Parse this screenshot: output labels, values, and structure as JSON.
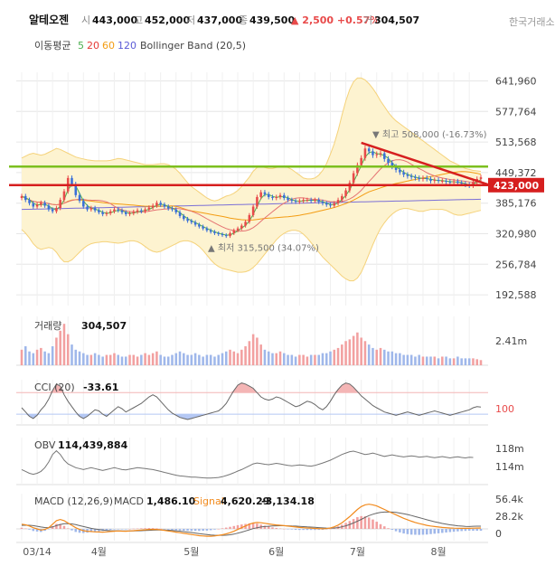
{
  "header": {
    "name": "알테오젠",
    "open_label": "시",
    "open": "443,000",
    "high_label": "고",
    "high": "452,000",
    "low_label": "저",
    "low": "437,000",
    "close_label": "종",
    "close": "439,500",
    "change": "▲ 2,500 +0.57%",
    "volume_label": "거",
    "volume": "304,507",
    "exchange": "한국거래소"
  },
  "indicators": {
    "ma_label": "이동평균",
    "ma_periods": [
      {
        "value": "5",
        "color": "#4caf50"
      },
      {
        "value": "20",
        "color": "#e53935"
      },
      {
        "value": "60",
        "color": "#f39c12"
      },
      {
        "value": "120",
        "color": "#5b5bd6"
      }
    ],
    "bollinger_label": "Bollinger Band (20,5)"
  },
  "colors": {
    "up": "#e84a4a",
    "down": "#3b6fd8",
    "band_fill": "#fdf3d0",
    "band_line": "#f5d27a",
    "support": "#d61f1f",
    "resistance": "#7cbf1f",
    "grid": "#e6e6e6"
  },
  "chart_data": [
    {
      "type": "candlestick",
      "panel": "price",
      "x_labels": [
        "03/14",
        "4월",
        "5월",
        "6월",
        "7월",
        "8월"
      ],
      "y_ticks": [
        "641,960",
        "577,764",
        "513,568",
        "449,372",
        "385,176",
        "320,980",
        "256,784",
        "192,588"
      ],
      "y_tick_values": [
        641960,
        577764,
        513568,
        449372,
        385176,
        320980,
        256784,
        192588
      ],
      "ylim": [
        170000,
        660000
      ],
      "current_price_label": "423,000",
      "current_price": 423000,
      "max_annotation": "▼ 최고 508,000 (-16.73%)",
      "max_value": 508000,
      "min_annotation": "▲ 최저 315,500 (34.07%)",
      "min_value": 315500,
      "ohlc_close": [
        400000,
        392000,
        385000,
        378000,
        382000,
        386000,
        380000,
        372000,
        368000,
        375000,
        392000,
        410000,
        438000,
        425000,
        402000,
        390000,
        378000,
        372000,
        375000,
        370000,
        366000,
        362000,
        364000,
        368000,
        372000,
        370000,
        366000,
        362000,
        364000,
        367000,
        370000,
        368000,
        372000,
        376000,
        380000,
        386000,
        382000,
        378000,
        374000,
        372000,
        366000,
        358000,
        352000,
        348000,
        345000,
        340000,
        336000,
        332000,
        328000,
        325000,
        322000,
        320000,
        318000,
        316000,
        322000,
        328000,
        332000,
        338000,
        346000,
        360000,
        378000,
        398000,
        408000,
        404000,
        398000,
        396000,
        398000,
        402000,
        396000,
        392000,
        390000,
        388000,
        390000,
        392000,
        392000,
        390000,
        392000,
        388000,
        385000,
        382000,
        380000,
        385000,
        392000,
        400000,
        412000,
        428000,
        448000,
        465000,
        480000,
        500000,
        494000,
        486000,
        488000,
        490000,
        478000,
        470000,
        462000,
        455000,
        450000,
        445000,
        442000,
        440000,
        438000,
        436000,
        438000,
        436000,
        432000,
        434000,
        432000,
        432000,
        430000,
        429000,
        431000,
        428000,
        426000,
        424000,
        422000,
        430000,
        436000,
        439500
      ],
      "band_upper": [
        480000,
        484000,
        488000,
        490000,
        488000,
        486000,
        488000,
        492000,
        496000,
        500000,
        498000,
        494000,
        490000,
        486000,
        482000,
        480000,
        478000,
        476000,
        475000,
        474000,
        474000,
        474000,
        474000,
        475000,
        477000,
        479000,
        478000,
        476000,
        474000,
        472000,
        470000,
        468000,
        466000,
        466000,
        466000,
        467000,
        468000,
        468000,
        466000,
        462000,
        456000,
        448000,
        438000,
        428000,
        420000,
        414000,
        408000,
        402000,
        396000,
        392000,
        390000,
        392000,
        396000,
        400000,
        402000,
        406000,
        412000,
        420000,
        430000,
        440000,
        452000,
        460000,
        462000,
        460000,
        458000,
        458000,
        460000,
        462000,
        462000,
        460000,
        456000,
        450000,
        444000,
        438000,
        436000,
        436000,
        438000,
        444000,
        454000,
        468000,
        488000,
        510000,
        538000,
        570000,
        600000,
        624000,
        640000,
        648000,
        648000,
        644000,
        636000,
        626000,
        614000,
        600000,
        588000,
        576000,
        566000,
        558000,
        552000,
        546000,
        540000,
        534000,
        528000,
        522000,
        516000,
        510000,
        504000,
        498000,
        492000,
        486000,
        480000,
        474000,
        470000,
        466000,
        462000,
        458000,
        456000,
        454000,
        453000,
        452000
      ],
      "band_lower": [
        330000,
        322000,
        312000,
        300000,
        292000,
        288000,
        290000,
        292000,
        290000,
        282000,
        270000,
        262000,
        262000,
        266000,
        274000,
        282000,
        290000,
        296000,
        300000,
        302000,
        303000,
        304000,
        304000,
        303000,
        302000,
        301000,
        302000,
        304000,
        306000,
        306000,
        304000,
        300000,
        294000,
        288000,
        284000,
        282000,
        284000,
        288000,
        292000,
        296000,
        300000,
        304000,
        306000,
        306000,
        304000,
        300000,
        294000,
        286000,
        276000,
        266000,
        258000,
        252000,
        248000,
        246000,
        244000,
        242000,
        240000,
        240000,
        241000,
        244000,
        250000,
        258000,
        268000,
        278000,
        288000,
        298000,
        308000,
        316000,
        322000,
        326000,
        328000,
        328000,
        326000,
        320000,
        312000,
        302000,
        292000,
        282000,
        272000,
        264000,
        256000,
        248000,
        240000,
        232000,
        226000,
        222000,
        222000,
        228000,
        240000,
        258000,
        278000,
        298000,
        316000,
        332000,
        344000,
        354000,
        362000,
        368000,
        372000,
        374000,
        374000,
        372000,
        370000,
        368000,
        368000,
        370000,
        372000,
        372000,
        372000,
        372000,
        370000,
        366000,
        362000,
        360000,
        360000,
        362000,
        364000,
        366000,
        368000,
        370000
      ],
      "support_line": 423000,
      "resistance_line": 462000,
      "trend_line": {
        "from": 512000,
        "to": 423000
      }
    },
    {
      "type": "bar",
      "panel": "volume",
      "label": "거래량",
      "value_label": "304,507",
      "y_tick": "2.41m",
      "values": [
        0.9,
        1.1,
        0.8,
        0.7,
        0.9,
        1.0,
        0.8,
        0.7,
        1.1,
        1.6,
        2.0,
        2.4,
        1.8,
        1.2,
        0.9,
        0.8,
        0.7,
        0.6,
        0.6,
        0.7,
        0.6,
        0.5,
        0.6,
        0.6,
        0.7,
        0.6,
        0.5,
        0.5,
        0.6,
        0.6,
        0.5,
        0.6,
        0.7,
        0.6,
        0.7,
        0.8,
        0.6,
        0.5,
        0.5,
        0.6,
        0.7,
        0.8,
        0.7,
        0.6,
        0.6,
        0.7,
        0.6,
        0.5,
        0.6,
        0.6,
        0.5,
        0.6,
        0.7,
        0.8,
        0.9,
        0.8,
        0.7,
        0.9,
        1.1,
        1.4,
        1.8,
        1.6,
        1.2,
        0.9,
        0.8,
        0.7,
        0.7,
        0.8,
        0.7,
        0.6,
        0.6,
        0.5,
        0.6,
        0.6,
        0.5,
        0.6,
        0.6,
        0.6,
        0.7,
        0.7,
        0.8,
        0.9,
        1.0,
        1.2,
        1.4,
        1.5,
        1.7,
        1.9,
        1.6,
        1.4,
        1.2,
        1.0,
        0.9,
        1.0,
        0.9,
        0.8,
        0.8,
        0.7,
        0.7,
        0.6,
        0.6,
        0.6,
        0.5,
        0.6,
        0.5,
        0.5,
        0.5,
        0.5,
        0.4,
        0.5,
        0.5,
        0.4,
        0.4,
        0.5,
        0.4,
        0.4,
        0.4,
        0.4,
        0.35,
        0.3
      ]
    },
    {
      "type": "line",
      "panel": "cci",
      "label": "CCI (20)",
      "value_label": "-33.61",
      "y_tick": "100",
      "ylim": [
        -200,
        220
      ],
      "values": [
        -40,
        -80,
        -120,
        -140,
        -110,
        -60,
        -20,
        40,
        120,
        180,
        160,
        80,
        20,
        -30,
        -80,
        -120,
        -140,
        -120,
        -90,
        -60,
        -70,
        -100,
        -120,
        -90,
        -60,
        -30,
        -50,
        -80,
        -60,
        -40,
        -20,
        0,
        30,
        60,
        80,
        60,
        20,
        -20,
        -60,
        -90,
        -110,
        -130,
        -140,
        -150,
        -140,
        -130,
        -120,
        -110,
        -100,
        -90,
        -80,
        -70,
        -40,
        0,
        60,
        120,
        170,
        190,
        180,
        160,
        140,
        100,
        60,
        40,
        30,
        40,
        60,
        50,
        30,
        10,
        -10,
        -30,
        -20,
        0,
        20,
        10,
        -10,
        -40,
        -60,
        -30,
        20,
        80,
        130,
        170,
        190,
        180,
        150,
        110,
        70,
        40,
        10,
        -20,
        -40,
        -60,
        -80,
        -90,
        -100,
        -110,
        -100,
        -90,
        -80,
        -90,
        -100,
        -110,
        -100,
        -90,
        -80,
        -70,
        -80,
        -90,
        -100,
        -110,
        -100,
        -90,
        -80,
        -70,
        -60,
        -40,
        -30,
        -33.61
      ]
    },
    {
      "type": "line",
      "panel": "obv",
      "label": "OBV",
      "value_label": "114,439,884",
      "y_ticks": [
        "118m",
        "114m"
      ],
      "ylim": [
        100,
        125
      ],
      "values": [
        108,
        107,
        106,
        105.5,
        106,
        107,
        109,
        112,
        116,
        118,
        116,
        113,
        111,
        110,
        109,
        108.5,
        108,
        108.5,
        109,
        108.5,
        108,
        107.5,
        108,
        108.5,
        109,
        108.5,
        108,
        107.8,
        108.2,
        108.6,
        109,
        108.8,
        108.5,
        108.2,
        108,
        107.5,
        107,
        106.5,
        106,
        105.5,
        105,
        104.6,
        104.4,
        104.2,
        104,
        104,
        103.8,
        103.6,
        103.5,
        103.5,
        103.6,
        103.8,
        104.2,
        104.8,
        105.5,
        106.3,
        107.2,
        108,
        109,
        110,
        111,
        111.5,
        111.2,
        110.8,
        110.6,
        110.9,
        111.3,
        111,
        110.6,
        110.2,
        110,
        110.2,
        110.5,
        110.3,
        110,
        109.8,
        110.2,
        110.8,
        111.5,
        112.2,
        113,
        114,
        115,
        116,
        116.8,
        117.5,
        117.8,
        117.2,
        116.6,
        116,
        116.3,
        116.8,
        116.2,
        115.6,
        115,
        115.4,
        115.8,
        115.4,
        115,
        114.7,
        115,
        115.3,
        115,
        114.6,
        114.8,
        115,
        114.6,
        114.3,
        114.6,
        114.9,
        114.5,
        114.2,
        114.5,
        114.8,
        114.4,
        114.2,
        114.5,
        114.44
      ]
    },
    {
      "type": "line",
      "panel": "macd",
      "label_macd_params": "MACD (12,26,9)",
      "label_macd": "MACD",
      "macd_value": "1,486.10",
      "label_signal": "Signal",
      "signal_value": "4,620.29",
      "hist_value": "-3,134.18",
      "y_ticks": [
        "56.4k",
        "28.2k",
        "0"
      ],
      "ylim": [
        -20000,
        60000
      ],
      "macd": [
        8000,
        7000,
        5000,
        2000,
        0,
        -2000,
        -1000,
        2000,
        8000,
        14000,
        16000,
        14000,
        10000,
        6000,
        2000,
        -1000,
        -3000,
        -4000,
        -4500,
        -5000,
        -5200,
        -5500,
        -5000,
        -4500,
        -4000,
        -3500,
        -3800,
        -4000,
        -3500,
        -3000,
        -2500,
        -2000,
        -1500,
        -1000,
        -800,
        -1000,
        -1500,
        -2500,
        -3500,
        -4500,
        -5500,
        -6500,
        -7500,
        -8500,
        -9500,
        -10500,
        -11500,
        -12000,
        -12500,
        -12500,
        -12000,
        -11000,
        -10000,
        -8500,
        -6500,
        -4000,
        -1000,
        2000,
        5000,
        8000,
        10000,
        11000,
        10500,
        9500,
        8500,
        7500,
        6800,
        6200,
        5500,
        4800,
        4000,
        3200,
        2500,
        2000,
        1600,
        1200,
        800,
        400,
        200,
        500,
        1500,
        3500,
        6500,
        10500,
        15500,
        21000,
        27000,
        33000,
        38000,
        41000,
        42000,
        41000,
        39000,
        36000,
        33000,
        30000,
        27000,
        24000,
        21000,
        18000,
        15500,
        13000,
        11000,
        9000,
        7500,
        6000,
        5000,
        4000,
        3200,
        2500,
        2000,
        1600,
        1300,
        1100,
        1000,
        900,
        1000,
        1200,
        1400,
        1486
      ],
      "signal": [
        6000,
        6300,
        6200,
        5600,
        4500,
        3200,
        2300,
        2200,
        3400,
        5500,
        7600,
        8900,
        9100,
        8500,
        7200,
        5600,
        4000,
        2400,
        1000,
        -200,
        -1200,
        -2000,
        -2600,
        -3000,
        -3200,
        -3300,
        -3400,
        -3500,
        -3500,
        -3400,
        -3200,
        -3000,
        -2700,
        -2400,
        -2100,
        -1900,
        -1800,
        -2000,
        -2300,
        -2700,
        -3300,
        -3900,
        -4600,
        -5400,
        -6200,
        -7100,
        -8000,
        -8800,
        -9600,
        -10300,
        -10800,
        -11000,
        -11000,
        -10700,
        -10000,
        -8900,
        -7300,
        -5500,
        -3500,
        -1500,
        400,
        2000,
        3200,
        4000,
        4500,
        4900,
        5200,
        5400,
        5400,
        5300,
        5000,
        4700,
        4300,
        3800,
        3400,
        3000,
        2600,
        2100,
        1700,
        1400,
        1300,
        1500,
        2200,
        3500,
        5300,
        7600,
        10200,
        13000,
        16200,
        19600,
        22600,
        25000,
        26800,
        28000,
        28600,
        28800,
        28600,
        28000,
        27000,
        25800,
        24400,
        22800,
        21000,
        19200,
        17400,
        15600,
        13800,
        12200,
        10700,
        9300,
        8100,
        7000,
        6100,
        5300,
        4700,
        4300,
        4000,
        4400,
        4600,
        4620
      ]
    }
  ]
}
